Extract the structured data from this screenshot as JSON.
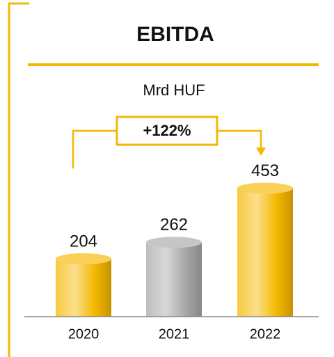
{
  "chart_data": {
    "type": "bar",
    "title": "EBITDA",
    "subtitle": "Mrd HUF",
    "annotation": "+122%",
    "categories": [
      "2020",
      "2021",
      "2022"
    ],
    "values": [
      204,
      262,
      453
    ],
    "colors": [
      "#f5b800",
      "#a8a8a8",
      "#f5b800"
    ],
    "ylim": [
      0,
      1100
    ]
  }
}
